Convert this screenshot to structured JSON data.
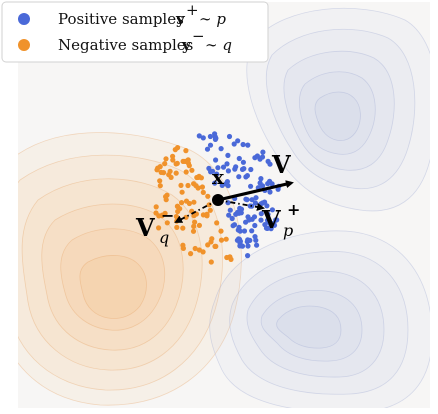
{
  "legend": {
    "positive": {
      "text": "Positive samples",
      "var": "y",
      "sup": "+",
      "tail": "∼ p",
      "color": "#4a69d8"
    },
    "negative": {
      "text": "Negative samples",
      "var": "y",
      "sup": "−",
      "tail": "∼ q",
      "color": "#f0922b"
    }
  },
  "labels": {
    "anchor": "x",
    "vector": "V",
    "neg_vector": "V",
    "neg_sup": "−",
    "neg_sub": "q",
    "pos_vector": "V",
    "pos_sup": "+",
    "pos_sub": "p"
  },
  "colors": {
    "positive": "#4a69d8",
    "negative": "#f0922b",
    "background": "#f7f6f5",
    "orange_density": "#f5b878",
    "blue_density": "#c9cfe6"
  }
}
